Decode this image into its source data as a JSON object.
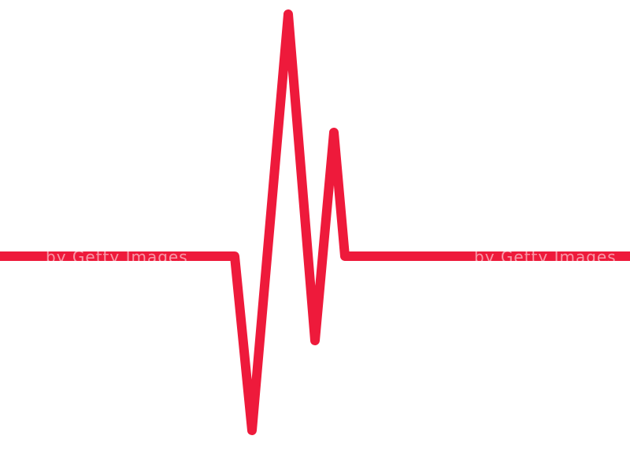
{
  "graphic": {
    "icon": "heartbeat-pulse-line",
    "stroke_color": "#EE1A3B",
    "background_color": "#FFFFFF"
  },
  "watermark": {
    "text_left": "by Getty Images",
    "text_right": "by Getty Images"
  }
}
